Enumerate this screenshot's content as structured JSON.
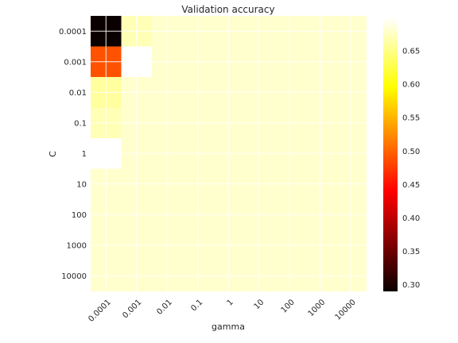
{
  "chart_data": {
    "type": "heatmap",
    "title": "Validation accuracy",
    "xlabel": "gamma",
    "ylabel": "C",
    "x_categories": [
      "0.0001",
      "0.001",
      "0.01",
      "0.1",
      "1",
      "10",
      "100",
      "1000",
      "10000"
    ],
    "y_categories": [
      "0.0001",
      "0.001",
      "0.01",
      "0.1",
      "1",
      "10",
      "100",
      "1000",
      "10000"
    ],
    "values": [
      [
        0.29,
        0.67,
        0.68,
        0.68,
        0.68,
        0.68,
        0.68,
        0.68,
        0.68
      ],
      [
        0.49,
        0.7,
        0.68,
        0.68,
        0.68,
        0.68,
        0.68,
        0.68,
        0.68
      ],
      [
        0.66,
        0.68,
        0.68,
        0.68,
        0.68,
        0.68,
        0.68,
        0.68,
        0.68
      ],
      [
        0.67,
        0.68,
        0.68,
        0.68,
        0.68,
        0.68,
        0.68,
        0.68,
        0.68
      ],
      [
        0.7,
        0.68,
        0.68,
        0.68,
        0.68,
        0.68,
        0.68,
        0.68,
        0.68
      ],
      [
        0.68,
        0.68,
        0.68,
        0.68,
        0.68,
        0.68,
        0.68,
        0.68,
        0.68
      ],
      [
        0.68,
        0.68,
        0.68,
        0.68,
        0.68,
        0.68,
        0.68,
        0.68,
        0.68
      ],
      [
        0.68,
        0.68,
        0.68,
        0.68,
        0.68,
        0.68,
        0.68,
        0.68,
        0.68
      ],
      [
        0.68,
        0.68,
        0.68,
        0.68,
        0.68,
        0.68,
        0.68,
        0.68,
        0.68
      ]
    ],
    "colormap": "hot",
    "vmin": 0.29,
    "vmax": 0.7,
    "colorbar_ticks": [
      "0.30",
      "0.35",
      "0.40",
      "0.45",
      "0.50",
      "0.55",
      "0.60",
      "0.65"
    ],
    "grid": true,
    "x_tick_rotation": 45
  }
}
